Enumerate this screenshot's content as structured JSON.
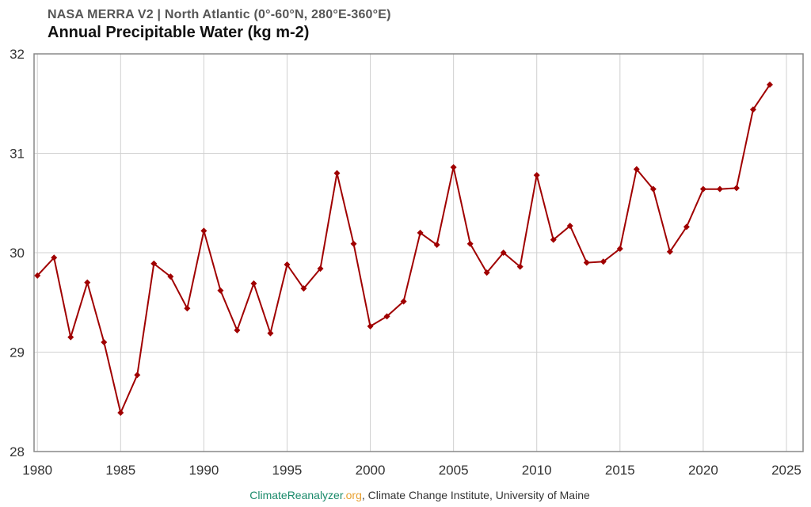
{
  "header": {
    "subtitle": "NASA MERRA V2 | North Atlantic (0°-60°N, 280°E-360°E)",
    "title": "Annual Precipitable Water (kg m-2)"
  },
  "footer": {
    "site_part1": "ClimateReanalyzer",
    "site_part2": ".org",
    "rest": ", Climate Change Institute, University of Maine",
    "color_part1": "#1a8a6a",
    "color_part2": "#e8a030"
  },
  "chart_data": {
    "type": "line",
    "title": "Annual Precipitable Water (kg m-2)",
    "subtitle": "NASA MERRA V2 | North Atlantic (0°-60°N, 280°E-360°E)",
    "xlabel": "",
    "ylabel": "",
    "xlim": [
      1979.8,
      2026
    ],
    "ylim": [
      28,
      32
    ],
    "x_ticks": [
      1980,
      1985,
      1990,
      1995,
      2000,
      2005,
      2010,
      2015,
      2020,
      2025
    ],
    "y_ticks": [
      28,
      29,
      30,
      31,
      32
    ],
    "grid": true,
    "legend": "none",
    "series": [
      {
        "color": "#a00000",
        "marker": "diamond",
        "x": [
          1980,
          1981,
          1982,
          1983,
          1984,
          1985,
          1986,
          1987,
          1988,
          1989,
          1990,
          1991,
          1992,
          1993,
          1994,
          1995,
          1996,
          1997,
          1998,
          1999,
          2000,
          2001,
          2002,
          2003,
          2004,
          2005,
          2006,
          2007,
          2008,
          2009,
          2010,
          2011,
          2012,
          2013,
          2014,
          2015,
          2016,
          2017,
          2018,
          2019,
          2020,
          2021,
          2022,
          2023,
          2024
        ],
        "y": [
          29.77,
          29.95,
          29.15,
          29.7,
          29.1,
          28.39,
          28.77,
          29.89,
          29.76,
          29.44,
          30.22,
          29.62,
          29.22,
          29.69,
          29.19,
          29.88,
          29.64,
          29.84,
          30.8,
          30.09,
          29.26,
          29.36,
          29.51,
          30.2,
          30.08,
          30.86,
          30.09,
          29.8,
          30.0,
          29.86,
          30.78,
          30.13,
          30.27,
          29.9,
          29.91,
          30.04,
          30.84,
          30.64,
          30.01,
          30.26,
          30.64,
          30.64,
          30.65,
          31.44,
          31.69
        ]
      }
    ]
  }
}
